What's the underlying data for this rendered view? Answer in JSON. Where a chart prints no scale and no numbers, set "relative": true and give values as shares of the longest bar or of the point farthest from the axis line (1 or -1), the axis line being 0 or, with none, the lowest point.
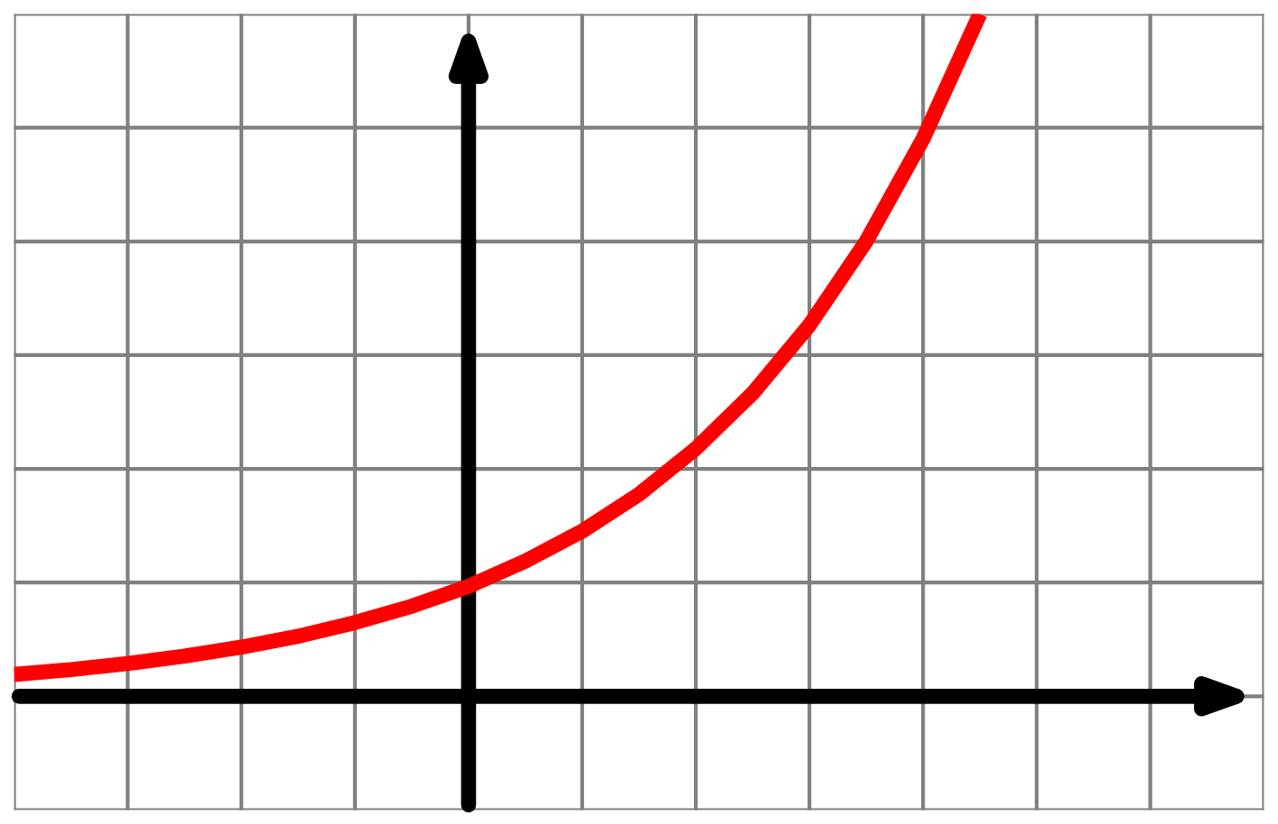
{
  "chart_data": {
    "type": "line",
    "relative": true,
    "grid": true,
    "marker": "none",
    "line_style": "solid",
    "categories": [
      null,
      null,
      null,
      null,
      null,
      null,
      null,
      null,
      null,
      null,
      null,
      null,
      null,
      null,
      null,
      null,
      null,
      null
    ],
    "series": [
      {
        "color": "#ff0000",
        "values": [
          0.032,
          0.039,
          0.048,
          0.059,
          0.072,
          0.088,
          0.108,
          0.132,
          0.161,
          0.198,
          0.242,
          0.296,
          0.363,
          0.444,
          0.544,
          0.667,
          0.817,
          1
        ]
      }
    ]
  }
}
